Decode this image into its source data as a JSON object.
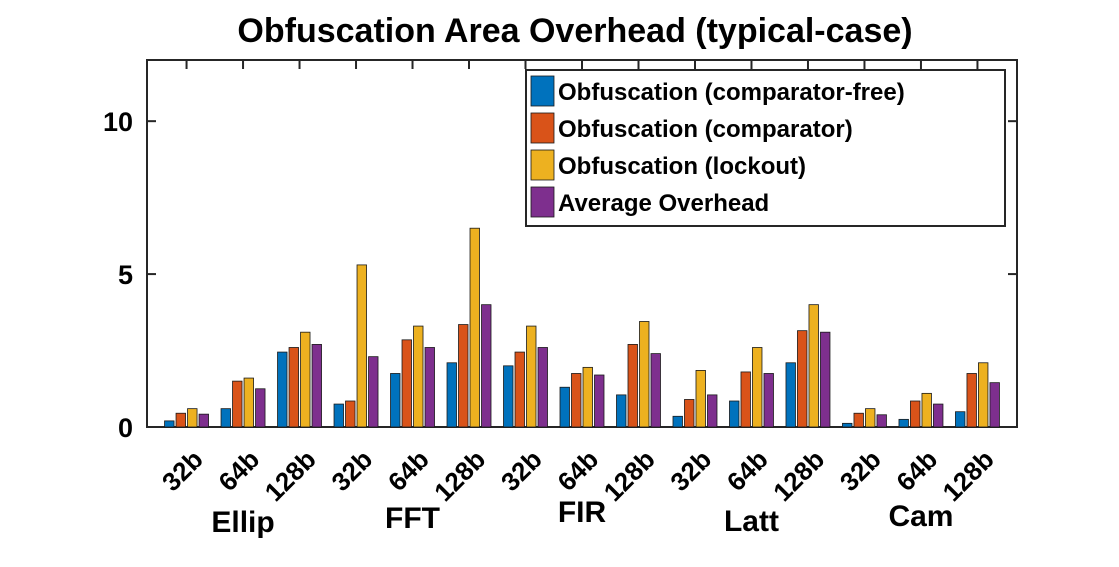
{
  "chart_data": {
    "type": "bar",
    "title": "Obfuscation Area Overhead (typical-case)",
    "xlabel": "",
    "ylabel": "",
    "ylim": [
      0,
      12
    ],
    "yticks": [
      0,
      5,
      10
    ],
    "ytick_labels": [
      "0",
      "5",
      "10"
    ],
    "legend_position": "top-right",
    "categories": [
      "32b",
      "64b",
      "128b",
      "32b",
      "64b",
      "128b",
      "32b",
      "64b",
      "128b",
      "32b",
      "64b",
      "128b",
      "32b",
      "64b",
      "128b"
    ],
    "groups": [
      "Ellip",
      "FFT",
      "FIR",
      "Latt",
      "Cam"
    ],
    "series": [
      {
        "name": "Obfuscation (comparator-free)",
        "color": "#0072BD",
        "values": [
          0.2,
          0.6,
          2.45,
          0.75,
          1.75,
          2.1,
          2.0,
          1.3,
          1.05,
          0.35,
          0.85,
          2.1,
          0.12,
          0.25,
          0.5
        ]
      },
      {
        "name": "Obfuscation (comparator)",
        "color": "#D95319",
        "values": [
          0.45,
          1.5,
          2.6,
          0.85,
          2.85,
          3.35,
          2.45,
          1.75,
          2.7,
          0.9,
          1.8,
          3.15,
          0.45,
          0.85,
          1.75
        ]
      },
      {
        "name": "Obfuscation (lockout)",
        "color": "#EDB120",
        "values": [
          0.6,
          1.6,
          3.1,
          5.3,
          3.3,
          6.5,
          3.3,
          1.95,
          3.45,
          1.85,
          2.6,
          4.0,
          0.6,
          1.1,
          2.1
        ]
      },
      {
        "name": "Average Overhead",
        "color": "#7E2F8E",
        "values": [
          0.42,
          1.25,
          2.7,
          2.3,
          2.6,
          4.0,
          2.6,
          1.7,
          2.4,
          1.05,
          1.75,
          3.1,
          0.4,
          0.75,
          1.45
        ]
      }
    ]
  }
}
